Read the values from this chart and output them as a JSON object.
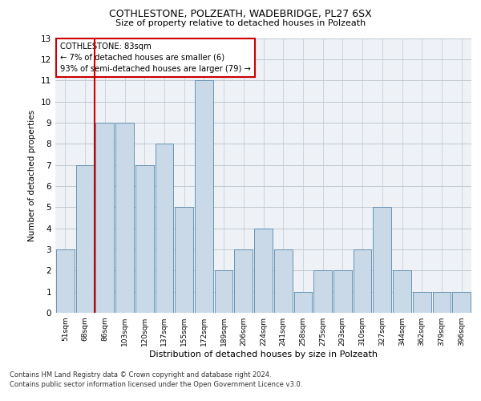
{
  "title1": "COTHLESTONE, POLZEATH, WADEBRIDGE, PL27 6SX",
  "title2": "Size of property relative to detached houses in Polzeath",
  "xlabel": "Distribution of detached houses by size in Polzeath",
  "ylabel": "Number of detached properties",
  "categories": [
    "51sqm",
    "68sqm",
    "86sqm",
    "103sqm",
    "120sqm",
    "137sqm",
    "155sqm",
    "172sqm",
    "189sqm",
    "206sqm",
    "224sqm",
    "241sqm",
    "258sqm",
    "275sqm",
    "293sqm",
    "310sqm",
    "327sqm",
    "344sqm",
    "362sqm",
    "379sqm",
    "396sqm"
  ],
  "values": [
    3,
    7,
    9,
    9,
    7,
    8,
    5,
    11,
    2,
    3,
    4,
    3,
    1,
    2,
    2,
    3,
    5,
    2,
    1,
    1,
    1
  ],
  "bar_color": "#c9d9e8",
  "bar_edge_color": "#5588aa",
  "vline_color": "#cc0000",
  "annotation_text": "COTHLESTONE: 83sqm\n← 7% of detached houses are smaller (6)\n93% of semi-detached houses are larger (79) →",
  "annotation_box_color": "#ffffff",
  "annotation_box_edge": "#cc0000",
  "ylim": [
    0,
    13
  ],
  "yticks": [
    0,
    1,
    2,
    3,
    4,
    5,
    6,
    7,
    8,
    9,
    10,
    11,
    12,
    13
  ],
  "footer1": "Contains HM Land Registry data © Crown copyright and database right 2024.",
  "footer2": "Contains public sector information licensed under the Open Government Licence v3.0.",
  "bg_color": "#eef2f7",
  "grid_color": "#c0c8d0"
}
